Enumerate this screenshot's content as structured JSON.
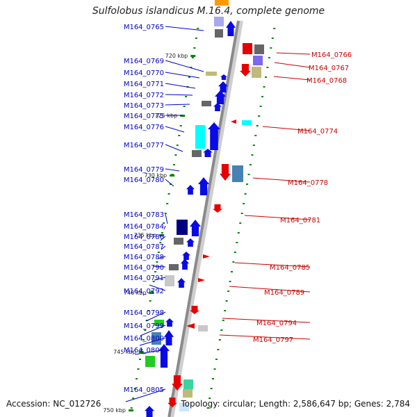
{
  "title": "Sulfolobus islandicus M.16.4, complete genome",
  "footer": {
    "accession": "Accession: NC_012726",
    "summary": "Topology: circular; Length: 2,586,647 bp; Genes: 2,784"
  },
  "colors": {
    "backbone": "#8a8a8a",
    "leader_left": "#0000cc",
    "leader_right": "#cc0000",
    "tick": "#008800",
    "gene_blue": "#0a0ae6",
    "gene_darkblue": "#000080",
    "gene_red": "#e60000",
    "gene_cyan": "#00ffff",
    "gene_green": "#22cc22",
    "gene_steel": "#4682b4",
    "gene_gray": "#666666",
    "gene_lightgray": "#c8c8c8",
    "gene_khaki": "#c0b97a",
    "gene_slate": "#7b68ee",
    "gene_teal": "#3cd3a0"
  },
  "ticks": [
    "720 kbp",
    "725 kbp",
    "730 kbp",
    "735 kbp",
    "740 kbp",
    "745 kbp",
    "750 kbp"
  ],
  "left_genes": [
    "M164_0765",
    "M164_0769",
    "M164_0770",
    "M164_0771",
    "M164_0772",
    "M164_0773",
    "M164_0775",
    "M164_0776",
    "M164_0777",
    "M164_0779",
    "M164_0780",
    "M164_0783",
    "M164_0784",
    "M164_0786",
    "M164_0787",
    "M164_0788",
    "M164_0790",
    "M164_0791",
    "M164_0792",
    "M164_0798",
    "M164_0799",
    "M164_0800",
    "M164_0801",
    "M164_0805"
  ],
  "right_genes": [
    "M164_0766",
    "M164_0767",
    "M164_0768",
    "M164_0774",
    "M164_0778",
    "M164_0781",
    "M164_0785",
    "M164_0789",
    "M164_0794",
    "M164_0797"
  ]
}
